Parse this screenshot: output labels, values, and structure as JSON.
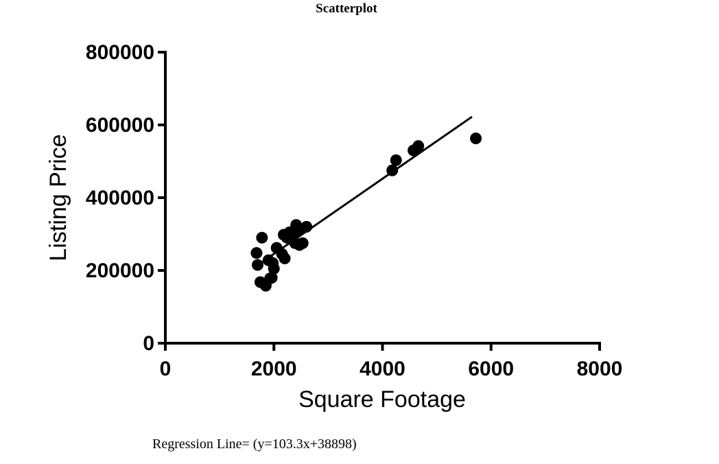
{
  "chart_data": {
    "type": "scatter",
    "title": "Scatterplot",
    "xlabel": "Square Footage",
    "ylabel": "Listing Price",
    "xlim": [
      0,
      8000
    ],
    "ylim": [
      0,
      800000
    ],
    "xticks": [
      "0",
      "2000",
      "4000",
      "6000",
      "8000"
    ],
    "yticks": [
      "0",
      "200000",
      "400000",
      "600000",
      "800000"
    ],
    "grid": false,
    "points": [
      {
        "x": 1680,
        "y": 248000
      },
      {
        "x": 1700,
        "y": 215000
      },
      {
        "x": 1750,
        "y": 168000
      },
      {
        "x": 1780,
        "y": 290000
      },
      {
        "x": 1850,
        "y": 158000
      },
      {
        "x": 1900,
        "y": 228000
      },
      {
        "x": 1930,
        "y": 178000
      },
      {
        "x": 1960,
        "y": 180000
      },
      {
        "x": 1980,
        "y": 220000
      },
      {
        "x": 2000,
        "y": 205000
      },
      {
        "x": 2050,
        "y": 262000
      },
      {
        "x": 2150,
        "y": 245000
      },
      {
        "x": 2180,
        "y": 298000
      },
      {
        "x": 2200,
        "y": 233000
      },
      {
        "x": 2240,
        "y": 290000
      },
      {
        "x": 2290,
        "y": 305000
      },
      {
        "x": 2330,
        "y": 288000
      },
      {
        "x": 2360,
        "y": 298000
      },
      {
        "x": 2390,
        "y": 275000
      },
      {
        "x": 2410,
        "y": 325000
      },
      {
        "x": 2450,
        "y": 310000
      },
      {
        "x": 2470,
        "y": 270000
      },
      {
        "x": 2530,
        "y": 275000
      },
      {
        "x": 2600,
        "y": 320000
      },
      {
        "x": 4180,
        "y": 475000
      },
      {
        "x": 4250,
        "y": 503000
      },
      {
        "x": 4570,
        "y": 530000
      },
      {
        "x": 4660,
        "y": 542000
      },
      {
        "x": 5720,
        "y": 563000
      }
    ],
    "regression": {
      "slope": 103.3,
      "intercept": 38898,
      "x_range": [
        1700,
        5650
      ]
    },
    "point_color": "#000000"
  },
  "footnote": "Regression Line= (y=103.3x+38898)"
}
